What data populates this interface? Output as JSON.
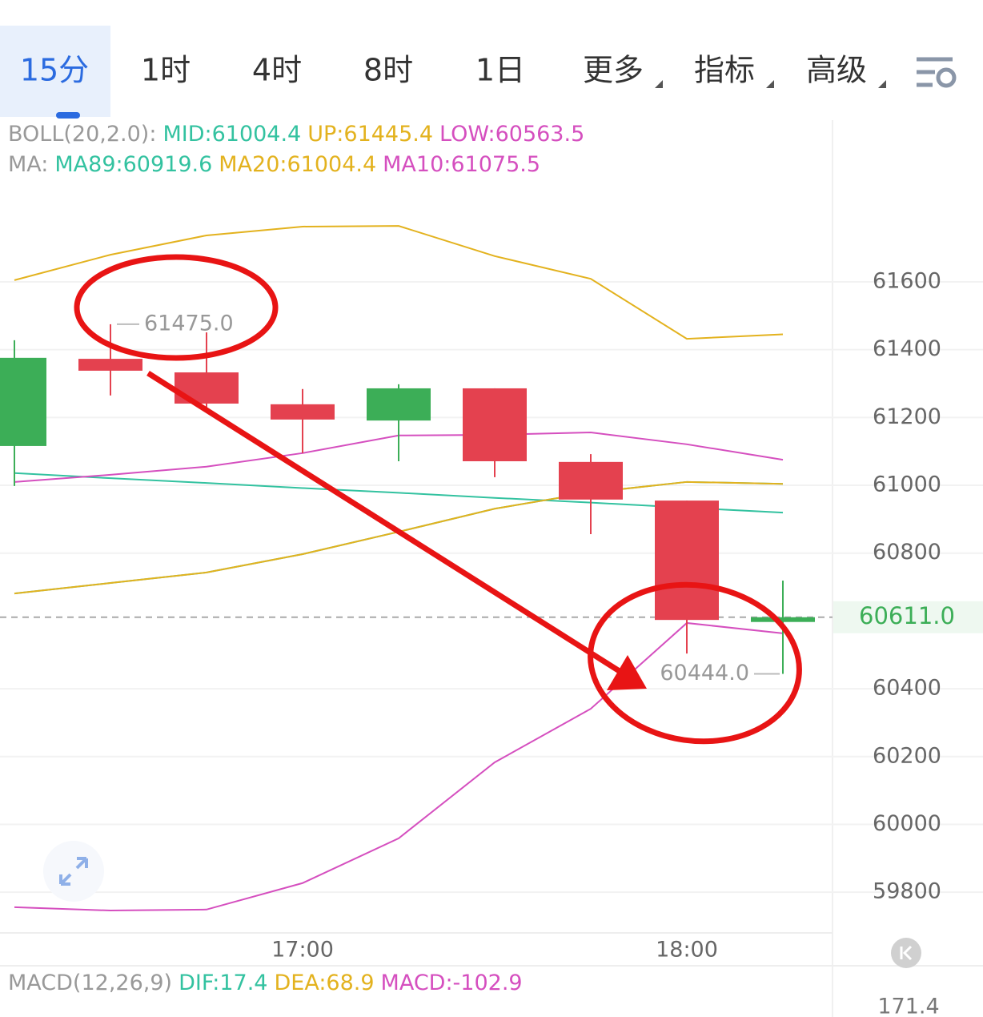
{
  "tabs": [
    "15分",
    "1时",
    "4时",
    "8时",
    "1日",
    "更多",
    "指标",
    "高级"
  ],
  "chart_data": {
    "type": "candlestick",
    "legend": [
      "BOLL(20,2.0):",
      "MA:"
    ],
    "categories": [
      null,
      null,
      null,
      "17:00",
      null,
      null,
      null,
      "18:00",
      null
    ],
    "open": [
      61116,
      61373,
      61333,
      61239,
      61191,
      61286,
      61069,
      60955,
      60597
    ],
    "high": [
      61428,
      61475,
      61451,
      61284,
      61298,
      61286,
      61092,
      60955,
      60719
    ],
    "low": [
      60998,
      61265,
      61227,
      61095,
      61071,
      61024,
      60856,
      60504,
      60444
    ],
    "close": [
      61376,
      61338,
      61241,
      61194,
      61286,
      61071,
      60958,
      60603,
      60611
    ],
    "up_color": "#3cae57",
    "down_color": "#e4414f",
    "series": [
      {
        "name": "MID:61004.4",
        "group": 0,
        "color": "#33c2a0",
        "values": [
          60681,
          60712,
          60743,
          60797,
          60863,
          60931,
          60979,
          61010,
          61004.4
        ]
      },
      {
        "name": "UP:61445.4",
        "group": 0,
        "color": "#e3b21e",
        "values": [
          61605,
          61680,
          61737,
          61763,
          61765,
          61676,
          61609,
          61432,
          61445.4
        ]
      },
      {
        "name": "LOW:60563.5",
        "group": 0,
        "color": "#d54fbf",
        "values": [
          59756,
          59746,
          59749,
          59827,
          59959,
          60183,
          60341,
          60594,
          60563.5
        ]
      },
      {
        "name": "MA89:60919.6",
        "group": 1,
        "color": "#33c2a0",
        "values": [
          61036,
          61021,
          61007,
          60992,
          60978,
          60963,
          60949,
          60934,
          60919.6
        ]
      },
      {
        "name": "MA20:61004.4",
        "group": 1,
        "color": "#e3b21e",
        "values": [
          60681,
          60712,
          60743,
          60797,
          60863,
          60931,
          60979,
          61010,
          61004.4
        ]
      },
      {
        "name": "MA10:61075.5",
        "group": 1,
        "color": "#d54fbf",
        "values": [
          61010,
          61031,
          61055,
          61095,
          61147,
          61149,
          61156,
          61121,
          61075.5
        ]
      }
    ],
    "ylim": [
      59680,
      62077
    ],
    "yticks": [
      59800,
      60000,
      60200,
      60400,
      60800,
      61000,
      61200,
      61400,
      61600
    ],
    "grid": true,
    "price_line": {
      "value": 60611,
      "label": "60611.0"
    },
    "high_marker": {
      "value": 61475,
      "label": "61475.0"
    },
    "low_marker": {
      "value": 60444,
      "label": "60444.0"
    }
  },
  "macd": {
    "title": "MACD(12,26,9)",
    "dif": "DIF:17.4",
    "dea": "DEA:68.9",
    "macd": "MACD:-102.9",
    "axis_label": "171.4"
  }
}
